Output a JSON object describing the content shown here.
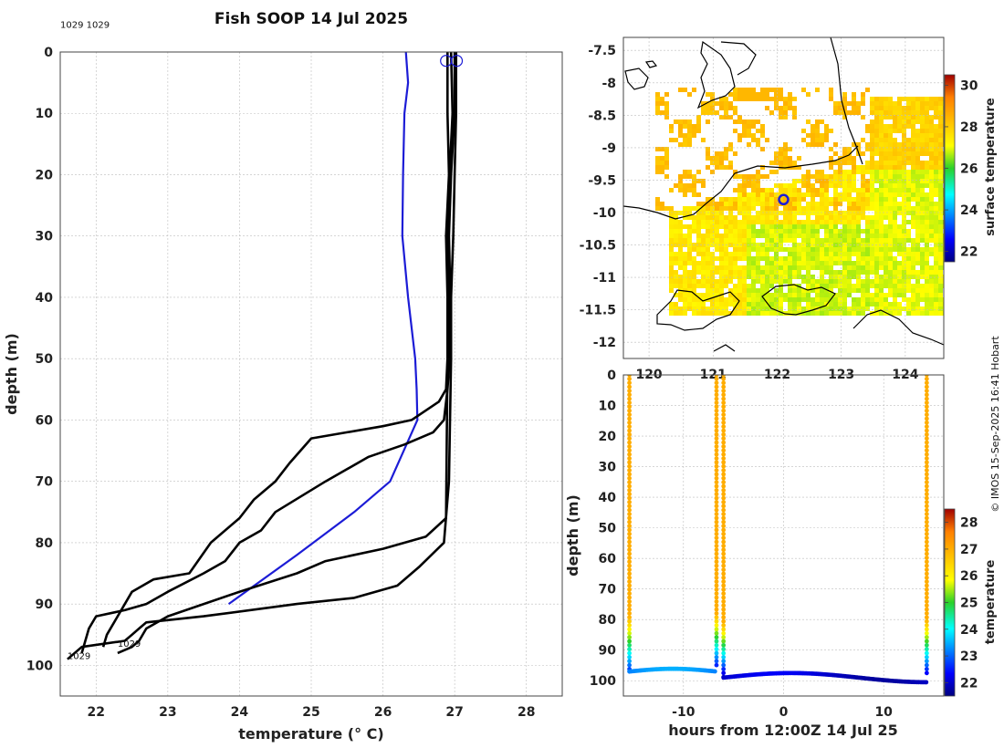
{
  "title": "Fish SOOP 14 Jul 2025",
  "credit": "© IMOS 15-Sep-2025 16:41 Hobart",
  "chart_data": [
    {
      "type": "line",
      "id": "profile",
      "xlabel": "temperature (° C)",
      "ylabel": "depth (m)",
      "xlim": [
        21.5,
        28.5
      ],
      "ylim": [
        105,
        0
      ],
      "xticks": [
        22,
        23,
        24,
        25,
        26,
        27,
        28
      ],
      "yticks": [
        0,
        10,
        20,
        30,
        40,
        50,
        60,
        70,
        80,
        90,
        100
      ],
      "annotations": [
        {
          "text": "1029 1029",
          "x": 21.5,
          "y": -2
        },
        {
          "text": "1029",
          "x": 22.3,
          "y": 97
        },
        {
          "text": "1029",
          "x": 21.6,
          "y": 99
        }
      ],
      "markers": [
        {
          "name": "start-circle-1",
          "x": 26.88,
          "y": 1
        },
        {
          "name": "start-circle-2",
          "x": 27.03,
          "y": 1
        }
      ],
      "series": [
        {
          "name": "profile-blue",
          "color": "#1c1cd6",
          "x": [
            26.32,
            26.35,
            26.3,
            26.28,
            26.27,
            26.35,
            26.45,
            26.47,
            26.48,
            26.1,
            25.6,
            24.8,
            23.85
          ],
          "y": [
            0,
            5,
            10,
            20,
            30,
            40,
            50,
            55,
            60,
            70,
            75,
            82,
            90
          ]
        },
        {
          "name": "profile-black-1",
          "color": "#000000",
          "x": [
            26.9,
            26.9,
            26.92,
            26.88,
            26.9,
            26.9,
            26.88,
            26.78,
            26.4,
            26.0,
            25.5,
            25.0,
            24.7,
            24.5,
            24.2,
            24.0,
            23.6,
            23.3,
            22.8,
            22.5,
            22.3,
            22.15,
            22.1
          ],
          "y": [
            0,
            10,
            20,
            30,
            40,
            50,
            55,
            57,
            60,
            61,
            62,
            63,
            67,
            70,
            73,
            76,
            80,
            85,
            86,
            88,
            92,
            95,
            97
          ]
        },
        {
          "name": "profile-black-2",
          "color": "#000000",
          "x": [
            27.0,
            27.0,
            26.95,
            26.92,
            26.94,
            26.93,
            26.9,
            26.85,
            26.7,
            26.3,
            25.8,
            25.2,
            24.5,
            24.3,
            24.0,
            23.8,
            23.5,
            23.0,
            22.7,
            22.4,
            22.0,
            21.9,
            21.8
          ],
          "y": [
            0,
            10,
            20,
            30,
            40,
            50,
            55,
            60,
            62,
            64,
            66,
            70,
            75,
            78,
            80,
            83,
            85,
            88,
            90,
            91,
            92,
            94,
            98
          ]
        },
        {
          "name": "profile-black-3",
          "color": "#000000",
          "x": [
            26.95,
            26.97,
            26.93,
            26.9,
            26.92,
            26.9,
            26.88,
            26.6,
            26.0,
            25.2,
            24.8,
            24.0,
            23.0,
            22.7,
            22.6,
            22.5,
            22.3
          ],
          "y": [
            0,
            10,
            20,
            30,
            40,
            50,
            76,
            79,
            81,
            83,
            85,
            88,
            92,
            94,
            96,
            97,
            98
          ]
        },
        {
          "name": "profile-black-4",
          "color": "#000000",
          "x": [
            27.02,
            27.02,
            27.0,
            26.98,
            26.95,
            26.95,
            26.92,
            26.85,
            26.5,
            26.2,
            25.6,
            24.8,
            23.5,
            22.7,
            22.6,
            22.5,
            22.4,
            21.8,
            21.6
          ],
          "y": [
            0,
            10,
            20,
            30,
            40,
            50,
            70,
            80,
            84,
            87,
            89,
            90,
            92,
            93,
            94,
            95,
            96,
            97,
            99
          ]
        }
      ]
    },
    {
      "type": "heatmap",
      "id": "map",
      "colorbar_label": "surface temperature",
      "colorbar_ticks": [
        22,
        24,
        26,
        28,
        30
      ],
      "colorbar_range": [
        21.5,
        30.5
      ],
      "xticks": [
        120,
        121,
        122,
        123,
        124
      ],
      "xticklabels": [
        "120",
        "121",
        "122",
        "123",
        "124"
      ],
      "yticks": [
        -7.5,
        -8,
        -8.5,
        -9,
        -9.5,
        -10,
        -10.5,
        -11,
        -11.5,
        -12
      ],
      "yticklabels": [
        "-7.5",
        "-8",
        "-8.5",
        "-9",
        "-9.5",
        "-10",
        "-10.5",
        "-11",
        "-11.5",
        "-12"
      ],
      "xlim": [
        119.6,
        124.6
      ],
      "ylim": [
        -12.25,
        -7.3
      ],
      "vessel_position": {
        "lon": 122.1,
        "lat": -9.8
      }
    },
    {
      "type": "scatter",
      "id": "timeseries",
      "xlabel": "hours from 12:00Z 14 Jul 25",
      "ylabel": "depth (m)",
      "xlim": [
        -16,
        16
      ],
      "ylim": [
        105,
        0
      ],
      "xticks": [
        -10,
        0,
        10
      ],
      "yticks": [
        0,
        10,
        20,
        30,
        40,
        50,
        60,
        70,
        80,
        90,
        100
      ],
      "colorbar_label": "temperature",
      "colorbar_ticks": [
        22,
        23,
        24,
        25,
        26,
        27,
        28
      ],
      "colorbar_range": [
        21.5,
        28.5
      ]
    }
  ]
}
